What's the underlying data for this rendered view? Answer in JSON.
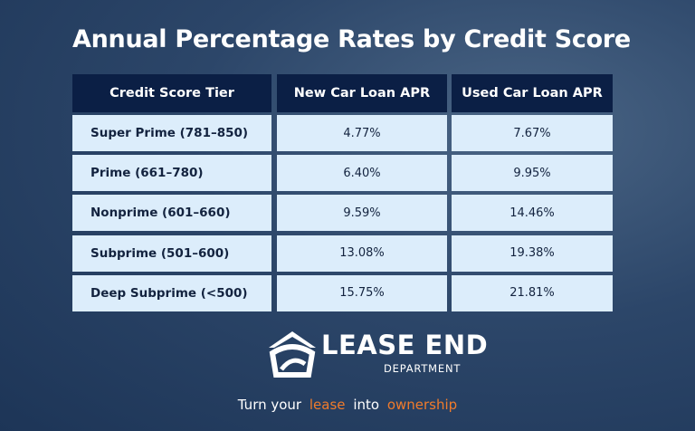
{
  "header": {
    "title": "Annual Percentage Rates by Credit Score"
  },
  "table": {
    "columns": [
      "Credit Score Tier",
      "New Car Loan APR",
      "Used Car Loan APR"
    ],
    "rows": [
      [
        "Super Prime (781–850)",
        "4.77%",
        "7.67%"
      ],
      [
        "Prime (661–780)",
        "6.40%",
        "9.95%"
      ],
      [
        "Nonprime (601–660)",
        "9.59%",
        "14.46%"
      ],
      [
        "Subprime (501–600)",
        "13.08%",
        "19.38%"
      ],
      [
        "Deep Subprime (<500)",
        "15.75%",
        "21.81%"
      ]
    ]
  },
  "logo": {
    "name": "LEASE END",
    "subtitle": "DEPARTMENT"
  },
  "tagline": [
    "Turn your",
    "lease",
    "into",
    "ownership"
  ]
}
